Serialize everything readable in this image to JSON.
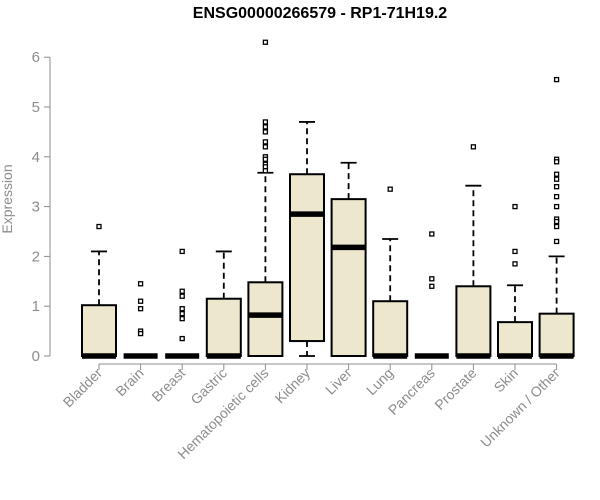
{
  "chart_data": {
    "type": "box",
    "title": "ENSG00000266579 - RP1-71H19.2",
    "ylabel": "Expression",
    "xlabel": "",
    "ylim": [
      0,
      6.3
    ],
    "yticks": [
      0,
      1,
      2,
      3,
      4,
      5,
      6
    ],
    "grid": false,
    "box_fill": "#ede7cd",
    "categories": [
      "Bladder",
      "Brain",
      "Breast",
      "Gastric",
      "Hematopoietic cells",
      "Kidney",
      "Liver",
      "Lung",
      "Pancreas",
      "Prostate",
      "Skin",
      "Unknown / Other"
    ],
    "boxes": [
      {
        "min": 0,
        "q1": 0,
        "median": 0,
        "q3": 1.02,
        "max": 2.1,
        "outliers": [
          2.6
        ]
      },
      {
        "min": 0,
        "q1": 0,
        "median": 0,
        "q3": 0,
        "max": 0,
        "outliers": [
          1.45,
          1.1,
          0.95,
          0.5,
          0.45
        ]
      },
      {
        "min": 0,
        "q1": 0,
        "median": 0,
        "q3": 0,
        "max": 0,
        "outliers": [
          2.1,
          1.3,
          1.2,
          0.95,
          0.85,
          0.75,
          0.35
        ]
      },
      {
        "min": 0,
        "q1": 0,
        "median": 0,
        "q3": 1.15,
        "max": 2.1,
        "outliers": []
      },
      {
        "min": 0,
        "q1": 0,
        "median": 0.82,
        "q3": 1.48,
        "max": 3.68,
        "outliers": [
          6.3,
          4.7,
          4.6,
          4.5,
          4.3,
          4.2,
          4.0,
          3.95,
          3.85,
          3.8,
          3.72
        ]
      },
      {
        "min": 0,
        "q1": 0.3,
        "median": 2.85,
        "q3": 3.65,
        "max": 4.7,
        "outliers": []
      },
      {
        "min": 0,
        "q1": 0,
        "median": 2.18,
        "q3": 3.15,
        "max": 3.88,
        "outliers": []
      },
      {
        "min": 0,
        "q1": 0,
        "median": 0,
        "q3": 1.1,
        "max": 2.35,
        "outliers": [
          3.35
        ]
      },
      {
        "min": 0,
        "q1": 0,
        "median": 0,
        "q3": 0,
        "max": 0,
        "outliers": [
          2.45,
          1.55,
          1.4
        ]
      },
      {
        "min": 0,
        "q1": 0,
        "median": 0,
        "q3": 1.4,
        "max": 3.42,
        "outliers": [
          4.2
        ]
      },
      {
        "min": 0,
        "q1": 0,
        "median": 0,
        "q3": 0.68,
        "max": 1.42,
        "outliers": [
          3.0,
          2.1,
          1.85
        ]
      },
      {
        "min": 0,
        "q1": 0,
        "median": 0,
        "q3": 0.85,
        "max": 2.0,
        "outliers": [
          5.55,
          3.95,
          3.9,
          3.65,
          3.55,
          3.4,
          3.2,
          3.0,
          2.75,
          2.7,
          2.6,
          2.3
        ]
      }
    ]
  }
}
